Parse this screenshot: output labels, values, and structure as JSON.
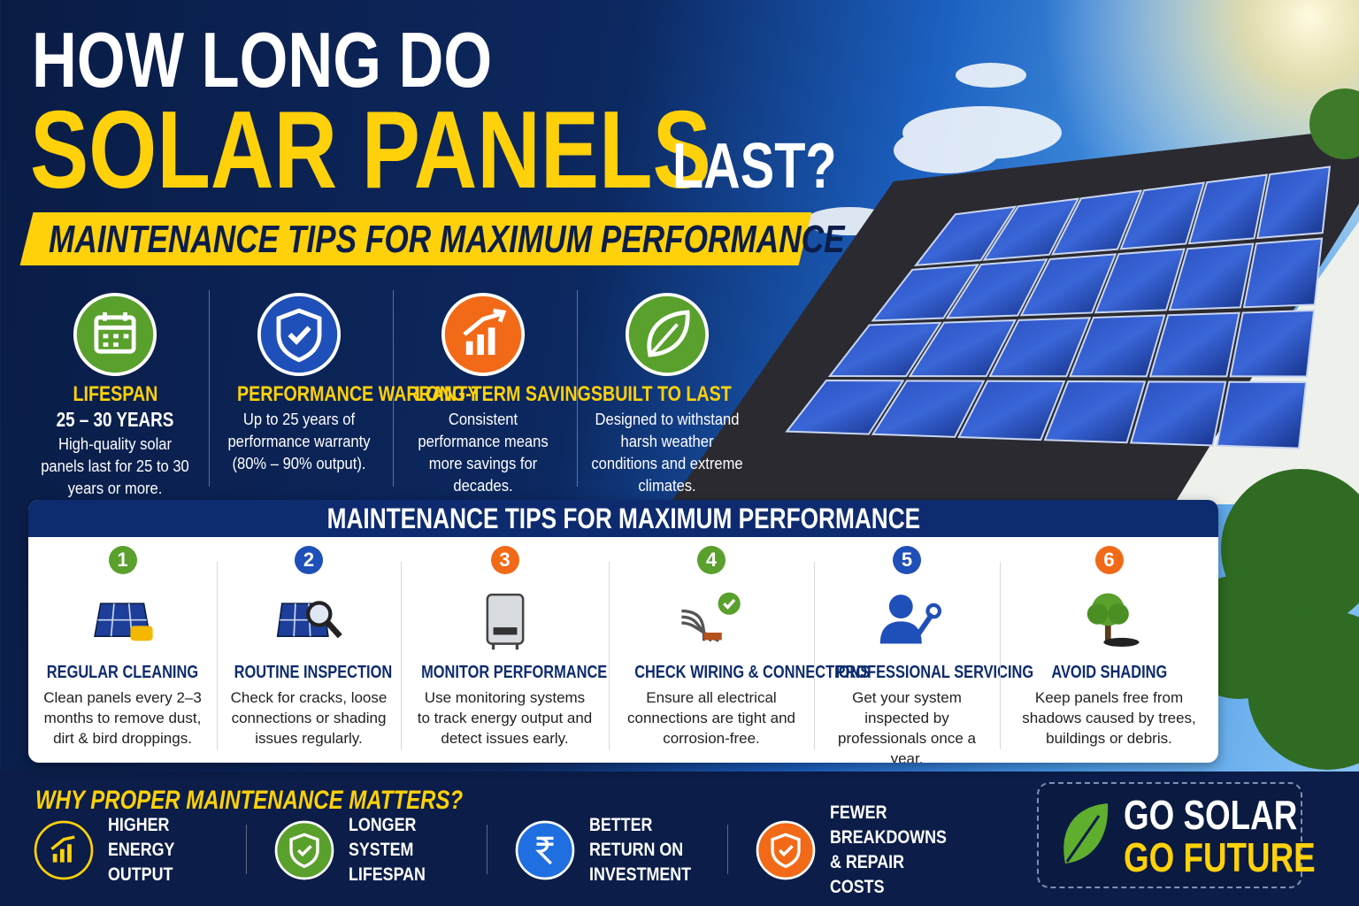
{
  "header": {
    "title_line1": "HOW LONG DO",
    "title_main": "SOLAR PANELS",
    "title_end": "LAST?",
    "subtitle": "MAINTENANCE TIPS FOR MAXIMUM PERFORMANCE"
  },
  "features": [
    {
      "title": "LIFESPAN",
      "highlight": "25 – 30 YEARS",
      "text": "High-quality solar panels last for 25 to 30 years or more."
    },
    {
      "title": "PERFORMANCE WARRANTY",
      "text": "Up to 25 years of performance warranty (80% – 90% output)."
    },
    {
      "title": "LONG-TERM SAVINGS",
      "text": "Consistent performance means more savings for decades."
    },
    {
      "title": "BUILT TO LAST",
      "text": "Designed to withstand harsh weather conditions and extreme climates."
    }
  ],
  "tips": {
    "title": "MAINTENANCE TIPS FOR MAXIMUM PERFORMANCE",
    "items": [
      {
        "number": "1",
        "title": "REGULAR CLEANING",
        "text": "Clean panels every 2–3 months to remove dust, dirt & bird droppings."
      },
      {
        "number": "2",
        "title": "ROUTINE INSPECTION",
        "text": "Check for cracks, loose connections or shading issues regularly."
      },
      {
        "number": "3",
        "title": "MONITOR PERFORMANCE",
        "text": "Use monitoring systems to track energy output and detect issues early."
      },
      {
        "number": "4",
        "title": "CHECK WIRING & CONNECTIONS",
        "text": "Ensure all electrical connections are tight and corrosion-free."
      },
      {
        "number": "5",
        "title": "PROFESSIONAL SERVICING",
        "text": "Get your system inspected by professionals once a year."
      },
      {
        "number": "6",
        "title": "AVOID SHADING",
        "text": "Keep panels free from shadows caused by trees, buildings or debris."
      }
    ]
  },
  "why": {
    "title": "WHY PROPER MAINTENANCE MATTERS?",
    "items": [
      "HIGHER ENERGY OUTPUT",
      "LONGER SYSTEM LIFESPAN",
      "BETTER RETURN ON INVESTMENT",
      "FEWER BREAKDOWNS & REPAIR COSTS"
    ]
  },
  "slogan": {
    "line1": "GO SOLAR",
    "line2": "GO FUTURE"
  }
}
